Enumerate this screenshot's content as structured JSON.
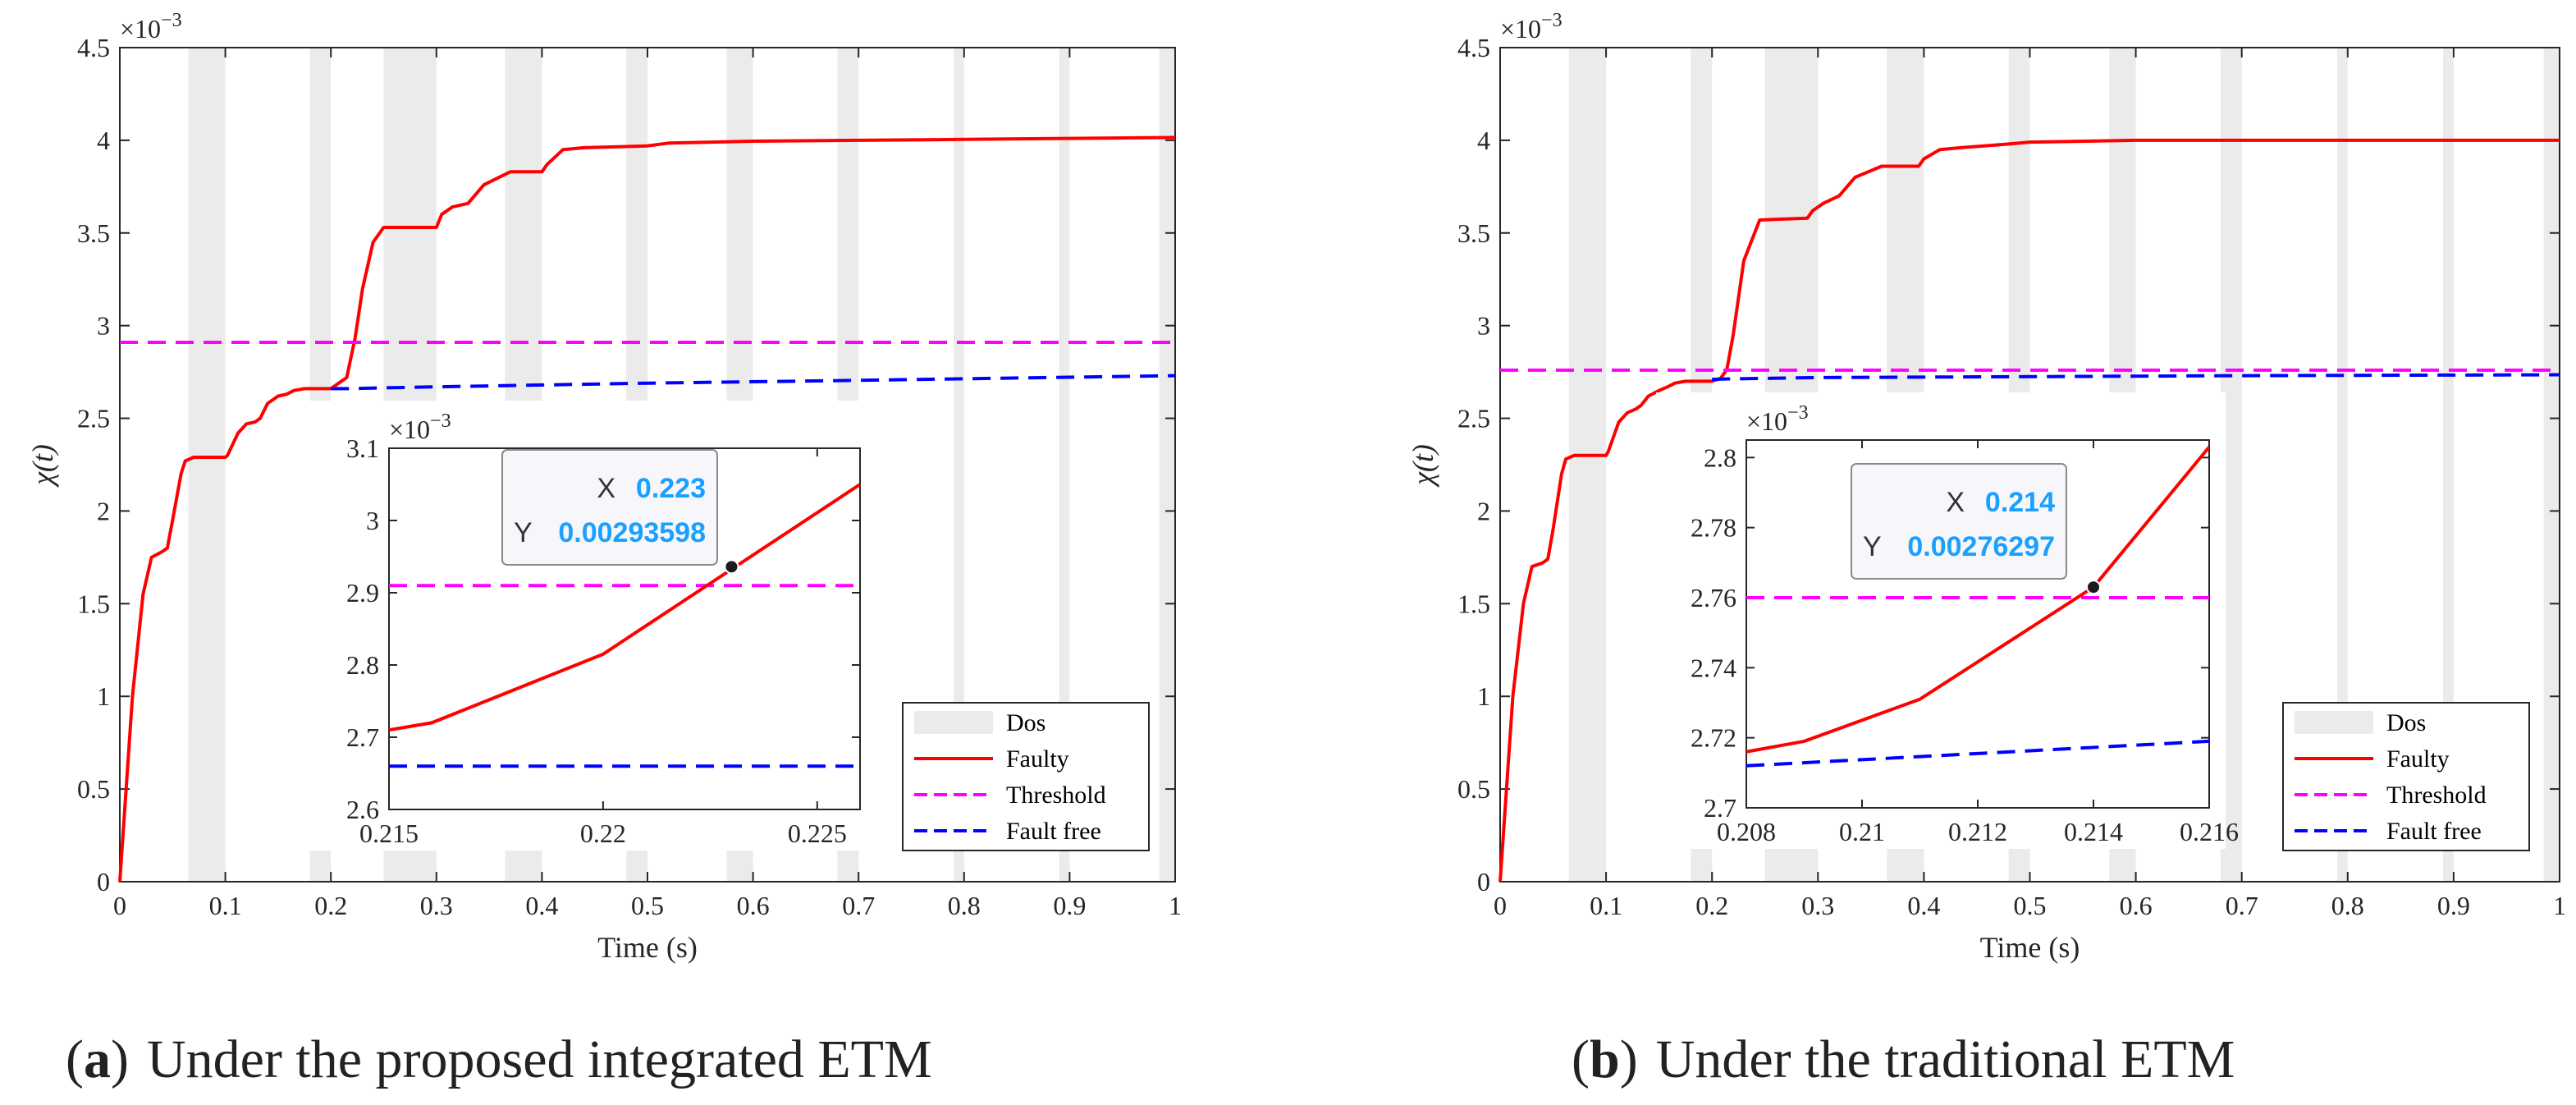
{
  "chart_data": [
    {
      "id": "a",
      "type": "line",
      "caption_tag": "a",
      "caption": "Under the proposed integrated ETM",
      "xlabel": "Time (s)",
      "ylabel": "χ(t)",
      "exponent": "×10",
      "exponent_power": "−3",
      "xlim": [
        0,
        1
      ],
      "ylim": [
        0,
        4.5
      ],
      "xticks": [
        0,
        0.1,
        0.2,
        0.3,
        0.4,
        0.5,
        0.6,
        0.7,
        0.8,
        0.9,
        1
      ],
      "xtick_labels": [
        "0",
        "0.1",
        "0.2",
        "0.3",
        "0.4",
        "0.5",
        "0.6",
        "0.7",
        "0.8",
        "0.9",
        "1"
      ],
      "yticks": [
        0,
        0.5,
        1,
        1.5,
        2,
        2.5,
        3,
        3.5,
        4,
        4.5
      ],
      "ytick_labels": [
        "0",
        "0.5",
        "1",
        "1.5",
        "2",
        "2.5",
        "3",
        "3.5",
        "4",
        "4.5"
      ],
      "dos_intervals": [
        [
          0.065,
          0.1
        ],
        [
          0.18,
          0.2
        ],
        [
          0.25,
          0.3
        ],
        [
          0.365,
          0.4
        ],
        [
          0.48,
          0.5
        ],
        [
          0.575,
          0.6
        ],
        [
          0.68,
          0.7
        ],
        [
          0.79,
          0.8
        ],
        [
          0.89,
          0.9
        ],
        [
          0.985,
          1.0
        ]
      ],
      "series": [
        {
          "name": "Faulty",
          "color": "#ff0000",
          "style": "solid",
          "x": [
            0,
            0.012,
            0.022,
            0.03,
            0.04,
            0.045,
            0.05,
            0.058,
            0.062,
            0.07,
            0.1,
            0.102,
            0.112,
            0.12,
            0.128,
            0.133,
            0.14,
            0.15,
            0.158,
            0.165,
            0.175,
            0.2,
            0.215,
            0.223,
            0.23,
            0.24,
            0.25,
            0.3,
            0.305,
            0.315,
            0.33,
            0.345,
            0.37,
            0.4,
            0.405,
            0.42,
            0.44,
            0.5,
            0.52,
            0.6,
            0.7,
            0.8,
            0.9,
            1.0
          ],
          "y": [
            0,
            1.0,
            1.55,
            1.75,
            1.78,
            1.8,
            1.95,
            2.2,
            2.27,
            2.29,
            2.29,
            2.3,
            2.42,
            2.47,
            2.48,
            2.5,
            2.58,
            2.62,
            2.63,
            2.65,
            2.66,
            2.66,
            2.72,
            2.935,
            3.2,
            3.45,
            3.53,
            3.53,
            3.6,
            3.64,
            3.66,
            3.76,
            3.83,
            3.83,
            3.87,
            3.95,
            3.96,
            3.97,
            3.985,
            3.995,
            4.0,
            4.005,
            4.01,
            4.015
          ]
        },
        {
          "name": "Threshold",
          "color": "#ff00ff",
          "style": "dashed",
          "x": [
            0,
            1
          ],
          "y": [
            2.91,
            2.91
          ]
        },
        {
          "name": "Fault free",
          "color": "#0000ff",
          "style": "dashed",
          "x": [
            0.2,
            0.215,
            0.3,
            0.5,
            0.7,
            1.0
          ],
          "y": [
            2.66,
            2.66,
            2.67,
            2.69,
            2.705,
            2.73
          ]
        }
      ],
      "legend": {
        "placement": "bottom-right",
        "entries": [
          "Dos",
          "Faulty",
          "Threshold",
          "Fault free"
        ]
      },
      "inset": {
        "exponent": "×10",
        "exponent_power": "−3",
        "xlim": [
          0.215,
          0.226
        ],
        "ylim": [
          2.6,
          3.1
        ],
        "xticks": [
          0.215,
          0.22,
          0.225
        ],
        "xtick_labels": [
          "0.215",
          "0.22",
          "0.225"
        ],
        "yticks": [
          2.6,
          2.7,
          2.8,
          2.9,
          3.0,
          3.1
        ],
        "ytick_labels": [
          "2.6",
          "2.7",
          "2.8",
          "2.9",
          "3",
          "3.1"
        ],
        "faulty": {
          "x": [
            0.215,
            0.216,
            0.22,
            0.226
          ],
          "y": [
            2.71,
            2.72,
            2.815,
            3.05
          ]
        },
        "threshold": 2.91,
        "fault_free": {
          "x": [
            0.215,
            0.226
          ],
          "y": [
            2.66,
            2.66
          ]
        },
        "datatip": {
          "x_label": "X",
          "x_value": "0.223",
          "y_label": "Y",
          "y_value": "0.00293598",
          "point": [
            0.223,
            2.936
          ]
        }
      }
    },
    {
      "id": "b",
      "type": "line",
      "caption_tag": "b",
      "caption": "Under the traditional ETM",
      "xlabel": "Time (s)",
      "ylabel": "χ(t)",
      "exponent": "×10",
      "exponent_power": "−3",
      "xlim": [
        0,
        1
      ],
      "ylim": [
        0,
        4.5
      ],
      "xticks": [
        0,
        0.1,
        0.2,
        0.3,
        0.4,
        0.5,
        0.6,
        0.7,
        0.8,
        0.9,
        1
      ],
      "xtick_labels": [
        "0",
        "0.1",
        "0.2",
        "0.3",
        "0.4",
        "0.5",
        "0.6",
        "0.7",
        "0.8",
        "0.9",
        "1"
      ],
      "yticks": [
        0,
        0.5,
        1,
        1.5,
        2,
        2.5,
        3,
        3.5,
        4,
        4.5
      ],
      "ytick_labels": [
        "0",
        "0.5",
        "1",
        "1.5",
        "2",
        "2.5",
        "3",
        "3.5",
        "4",
        "4.5"
      ],
      "dos_intervals": [
        [
          0.065,
          0.1
        ],
        [
          0.18,
          0.2
        ],
        [
          0.25,
          0.3
        ],
        [
          0.365,
          0.4
        ],
        [
          0.48,
          0.5
        ],
        [
          0.575,
          0.6
        ],
        [
          0.68,
          0.7
        ],
        [
          0.79,
          0.8
        ],
        [
          0.89,
          0.9
        ],
        [
          0.985,
          1.0
        ]
      ],
      "series": [
        {
          "name": "Faulty",
          "color": "#ff0000",
          "style": "solid",
          "x": [
            0,
            0.012,
            0.022,
            0.03,
            0.04,
            0.045,
            0.05,
            0.058,
            0.062,
            0.07,
            0.1,
            0.102,
            0.112,
            0.12,
            0.128,
            0.133,
            0.14,
            0.15,
            0.158,
            0.165,
            0.175,
            0.2,
            0.208,
            0.214,
            0.22,
            0.23,
            0.245,
            0.29,
            0.295,
            0.305,
            0.32,
            0.335,
            0.36,
            0.395,
            0.4,
            0.415,
            0.435,
            0.48,
            0.5,
            0.6,
            0.7,
            0.8,
            0.9,
            1.0
          ],
          "y": [
            0,
            1.0,
            1.5,
            1.7,
            1.72,
            1.74,
            1.9,
            2.2,
            2.28,
            2.3,
            2.3,
            2.32,
            2.48,
            2.53,
            2.55,
            2.57,
            2.62,
            2.65,
            2.67,
            2.69,
            2.7,
            2.7,
            2.715,
            2.763,
            2.95,
            3.35,
            3.57,
            3.58,
            3.62,
            3.66,
            3.7,
            3.8,
            3.86,
            3.86,
            3.9,
            3.95,
            3.96,
            3.98,
            3.99,
            4.0,
            4.0,
            4.0,
            4.0,
            4.0
          ]
        },
        {
          "name": "Threshold",
          "color": "#ff00ff",
          "style": "dashed",
          "x": [
            0,
            1
          ],
          "y": [
            2.76,
            2.76
          ]
        },
        {
          "name": "Fault free",
          "color": "#0000ff",
          "style": "dashed",
          "x": [
            0.2,
            0.208,
            0.3,
            0.5,
            0.7,
            1.0
          ],
          "y": [
            2.71,
            2.712,
            2.72,
            2.725,
            2.73,
            2.735
          ]
        }
      ],
      "legend": {
        "placement": "bottom-right",
        "entries": [
          "Dos",
          "Faulty",
          "Threshold",
          "Fault free"
        ]
      },
      "inset": {
        "exponent": "×10",
        "exponent_power": "−3",
        "xlim": [
          0.208,
          0.216
        ],
        "ylim": [
          2.7,
          2.805
        ],
        "xticks": [
          0.208,
          0.21,
          0.212,
          0.214,
          0.216
        ],
        "xtick_labels": [
          "0.208",
          "0.21",
          "0.212",
          "0.214",
          "0.216"
        ],
        "yticks": [
          2.7,
          2.72,
          2.74,
          2.76,
          2.78,
          2.8
        ],
        "ytick_labels": [
          "2.7",
          "2.72",
          "2.74",
          "2.76",
          "2.78",
          "2.8"
        ],
        "faulty": {
          "x": [
            0.208,
            0.209,
            0.211,
            0.214,
            0.216
          ],
          "y": [
            2.716,
            2.719,
            2.731,
            2.763,
            2.803
          ]
        },
        "threshold": 2.76,
        "fault_free": {
          "x": [
            0.208,
            0.216
          ],
          "y": [
            2.712,
            2.719
          ]
        },
        "datatip": {
          "x_label": "X",
          "x_value": "0.214",
          "y_label": "Y",
          "y_value": "0.00276297",
          "point": [
            0.214,
            2.763
          ]
        }
      }
    }
  ]
}
